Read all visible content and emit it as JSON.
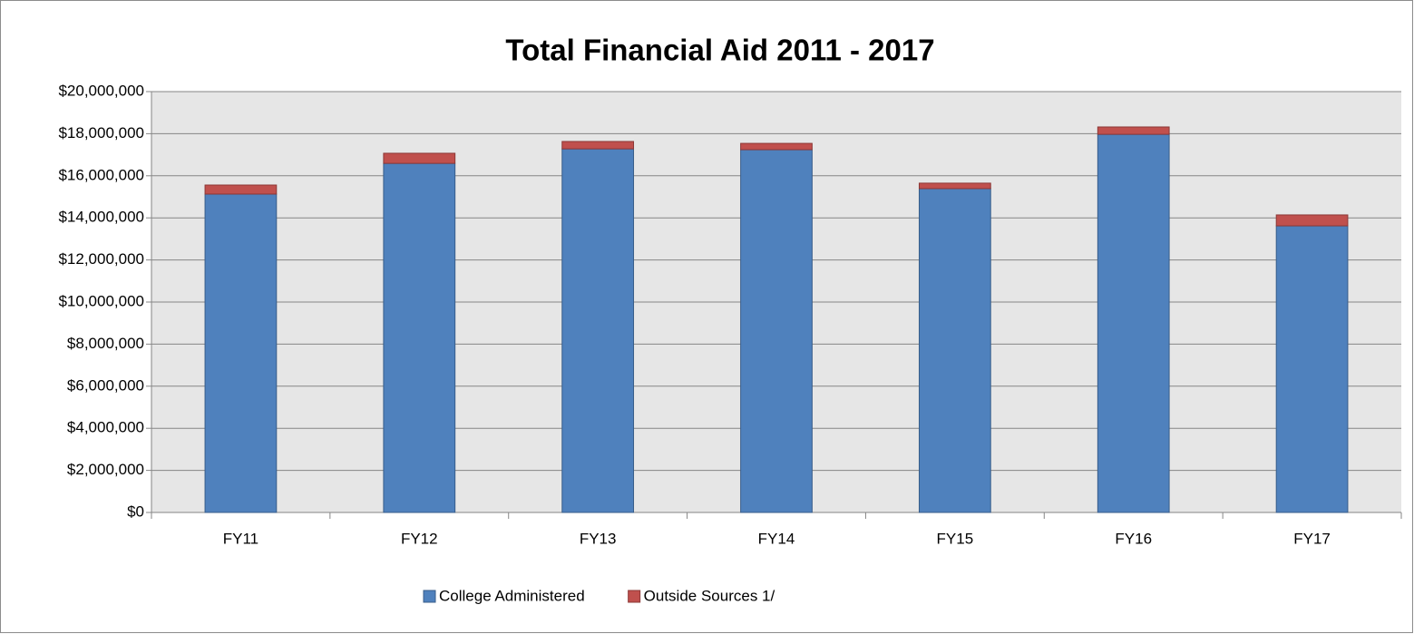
{
  "chart_data": {
    "type": "stacked_bar",
    "title": "Total Financial Aid 2011 - 2017",
    "categories": [
      "FY11",
      "FY12",
      "FY13",
      "FY14",
      "FY15",
      "FY16",
      "FY17"
    ],
    "series": [
      {
        "name": "College Administered",
        "color": "#4f81bd",
        "values": [
          15130000,
          16590000,
          17280000,
          17240000,
          15390000,
          17970000,
          13620000
        ]
      },
      {
        "name": "Outside Sources 1/",
        "color": "#c0504d",
        "values": [
          430000,
          480000,
          350000,
          300000,
          260000,
          350000,
          520000
        ]
      }
    ],
    "ylim": [
      0,
      20000000
    ],
    "yticks": [
      {
        "value": 0,
        "label": "$0"
      },
      {
        "value": 2000000,
        "label": "$2,000,000"
      },
      {
        "value": 4000000,
        "label": "$4,000,000"
      },
      {
        "value": 6000000,
        "label": "$6,000,000"
      },
      {
        "value": 8000000,
        "label": "$8,000,000"
      },
      {
        "value": 10000000,
        "label": "$10,000,000"
      },
      {
        "value": 12000000,
        "label": "$12,000,000"
      },
      {
        "value": 14000000,
        "label": "$14,000,000"
      },
      {
        "value": 16000000,
        "label": "$16,000,000"
      },
      {
        "value": 18000000,
        "label": "$18,000,000"
      },
      {
        "value": 20000000,
        "label": "$20,000,000"
      }
    ],
    "grid": true,
    "legend": "bottom"
  }
}
